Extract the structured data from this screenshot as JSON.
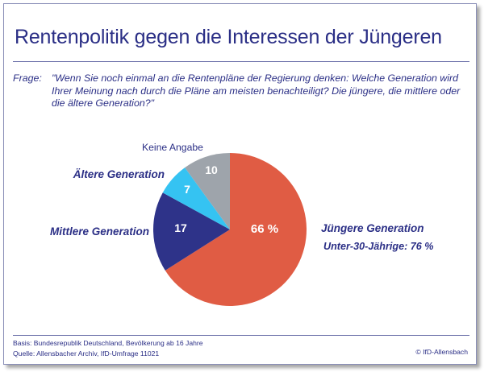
{
  "title": "Rentenpolitik gegen die Interessen der Jüngeren",
  "question": {
    "label": "Frage:",
    "text": "\"Wenn Sie noch einmal an die Rentenpläne der Regierung denken: Welche Generation wird Ihrer Meinung nach durch die Pläne am meisten benachteiligt? Die jüngere, die mittlere oder die ältere Generation?\""
  },
  "chart_data": {
    "type": "pie",
    "title": "",
    "start_angle_deg": 0,
    "direction": "clockwise",
    "slices": [
      {
        "label": "Jüngere Generation",
        "value": 66,
        "value_label": "66 %",
        "color": "#e05c44",
        "label_color": "#2b2f86",
        "label_style": "bold-italic"
      },
      {
        "label": "Mittlere Generation",
        "value": 17,
        "value_label": "17",
        "color": "#2e3389",
        "label_color": "#2b2f86",
        "label_style": "bold-italic"
      },
      {
        "label": "Ältere Generation",
        "value": 7,
        "value_label": "7",
        "color": "#35c3f2",
        "label_color": "#2b2f86",
        "label_style": "bold-italic"
      },
      {
        "label": "Keine Angabe",
        "value": 10,
        "value_label": "10",
        "color": "#9ea4ab",
        "label_color": "#2b2f86",
        "label_style": "normal"
      }
    ],
    "annotation": "Unter-30-Jährige: 76 %"
  },
  "footer": {
    "basis": "Basis: Bundesrepublik Deutschland, Bevölkerung ab 16 Jahre",
    "source": "Quelle: Allensbacher Archiv, IfD-Umfrage 11021",
    "copyright": "© IfD-Allensbach"
  }
}
